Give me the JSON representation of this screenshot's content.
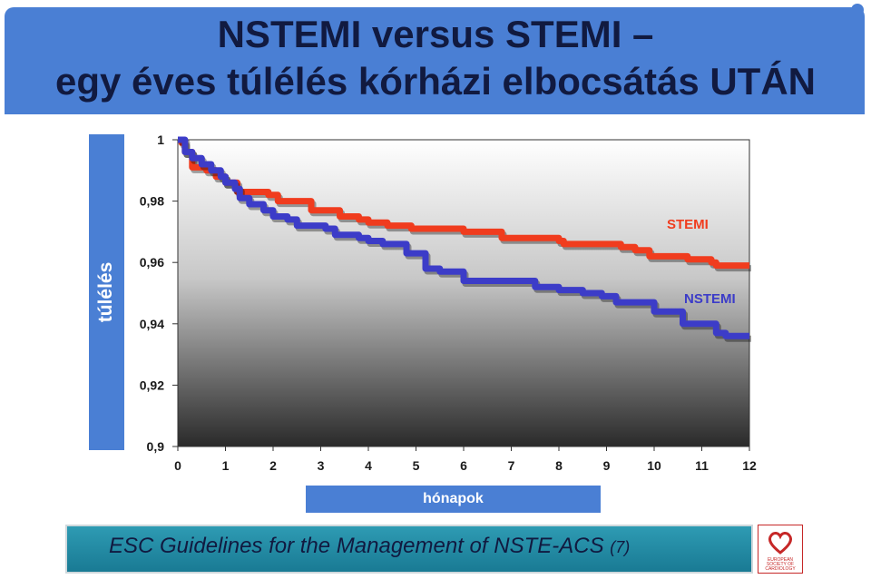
{
  "title": {
    "line1": "NSTEMI versus STEMI –",
    "line2": "egy éves túlélés  kórházi elbocsátás UTÁN"
  },
  "chart_data": {
    "type": "line",
    "ylabel": "túlélés",
    "xlabel": "hónapok",
    "xlim": [
      0,
      12
    ],
    "ylim": [
      0.9,
      1
    ],
    "xticks": [
      "0",
      "1",
      "2",
      "3",
      "4",
      "5",
      "6",
      "7",
      "8",
      "9",
      "10",
      "11",
      "12"
    ],
    "yticks": [
      "0,9",
      "0,92",
      "0,94",
      "0,96",
      "0,98",
      "1"
    ],
    "grid": false,
    "series": [
      {
        "name": "STEMI",
        "color": "#f03c1e",
        "x": [
          0,
          0.08,
          0.15,
          0.3,
          0.6,
          0.8,
          1.0,
          1.2,
          1.25,
          1.9,
          2.1,
          2.5,
          2.8,
          3.2,
          3.4,
          3.6,
          3.8,
          4.0,
          4.2,
          4.4,
          4.6,
          4.9,
          5.0,
          5.5,
          6.0,
          6.5,
          6.8,
          7.5,
          8.0,
          8.1,
          9.0,
          9.3,
          9.6,
          9.9,
          10.4,
          10.7,
          11.0,
          11.2,
          11.3,
          11.6,
          12.0
        ],
        "y": [
          1.0,
          0.999,
          0.996,
          0.991,
          0.99,
          0.988,
          0.986,
          0.986,
          0.983,
          0.982,
          0.98,
          0.98,
          0.977,
          0.977,
          0.975,
          0.975,
          0.974,
          0.973,
          0.973,
          0.972,
          0.972,
          0.971,
          0.971,
          0.971,
          0.97,
          0.97,
          0.968,
          0.968,
          0.967,
          0.966,
          0.966,
          0.965,
          0.964,
          0.962,
          0.962,
          0.961,
          0.961,
          0.96,
          0.959,
          0.959,
          0.959
        ]
      },
      {
        "name": "NSTEMI",
        "color": "#3c3cc8",
        "x": [
          0,
          0.15,
          0.3,
          0.5,
          0.7,
          0.9,
          1.0,
          1.2,
          1.3,
          1.5,
          1.8,
          2.0,
          2.3,
          2.5,
          2.9,
          3.1,
          3.3,
          3.8,
          4.0,
          4.3,
          4.8,
          5.0,
          5.2,
          5.5,
          6.0,
          6.8,
          7.5,
          8.0,
          8.5,
          8.9,
          9.2,
          9.6,
          10.0,
          10.4,
          10.6,
          10.8,
          11.3,
          11.5,
          11.9,
          12.0
        ],
        "y": [
          1.0,
          0.996,
          0.994,
          0.992,
          0.99,
          0.988,
          0.986,
          0.984,
          0.981,
          0.979,
          0.977,
          0.975,
          0.974,
          0.972,
          0.972,
          0.971,
          0.969,
          0.968,
          0.967,
          0.966,
          0.963,
          0.963,
          0.958,
          0.957,
          0.954,
          0.954,
          0.952,
          0.951,
          0.95,
          0.949,
          0.947,
          0.947,
          0.944,
          0.944,
          0.94,
          0.94,
          0.937,
          0.936,
          0.936,
          0.936
        ]
      }
    ]
  },
  "footer": {
    "text": "ESC Guidelines for the Management of NSTE-ACS",
    "ref": "(7)"
  },
  "logo": {
    "line1": "EUROPEAN",
    "line2": "SOCIETY OF",
    "line3": "CARDIOLOGY"
  }
}
